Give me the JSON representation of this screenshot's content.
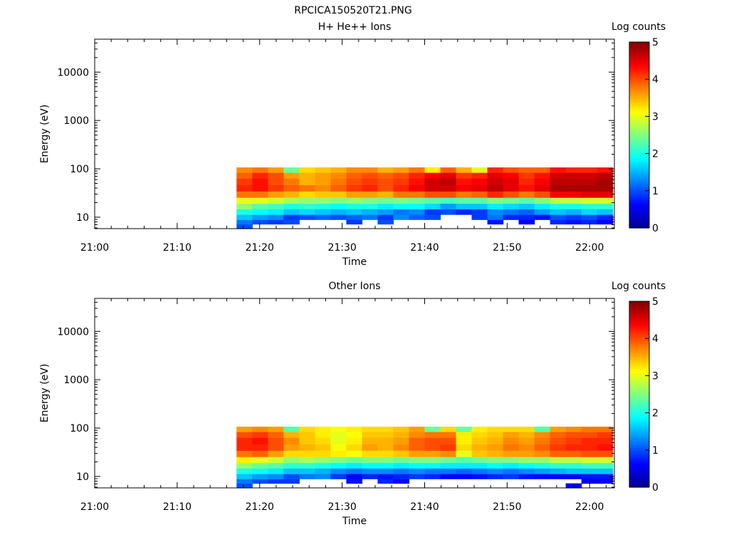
{
  "figure_title": "RPCICA150520T21.PNG",
  "colormap": [
    "#00008f",
    "#0000ff",
    "#0080ff",
    "#00ffff",
    "#80ff80",
    "#ffff00",
    "#ff8000",
    "#ff0000",
    "#800000"
  ],
  "chart_data": [
    {
      "type": "heatmap",
      "title": "H+ He++ Ions",
      "xlabel": "Time",
      "ylabel": "Energy (eV)",
      "x_ticks": [
        "21:00",
        "21:10",
        "21:20",
        "21:30",
        "21:40",
        "21:50",
        "22:00"
      ],
      "x_range": [
        "21:00",
        "22:03"
      ],
      "y_scale": "log",
      "y_ticks": [
        10,
        100,
        1000,
        10000
      ],
      "y_range": [
        5.8,
        48000
      ],
      "energy_bins": [
        6.5,
        8,
        10,
        13,
        17,
        22,
        30,
        40,
        55,
        75,
        95
      ],
      "data_start_time": "21:17.2",
      "data_end_time": "22:02.8",
      "colorbar": {
        "label": "Log counts",
        "ticks": [
          0,
          1,
          2,
          3,
          4,
          5
        ],
        "range": [
          0,
          5
        ]
      },
      "log_counts": [
        [
          1.0,
          -1,
          -1,
          -1,
          -1,
          -1,
          -1,
          -1,
          -1,
          -1,
          -1,
          -1,
          -1,
          -1,
          -1,
          -1,
          -1,
          -1,
          -1,
          -1,
          -1,
          -1,
          -1,
          -1
        ],
        [
          1.2,
          1.0,
          0.9,
          1.0,
          -1,
          -1,
          -1,
          0.9,
          -1,
          1.0,
          -1,
          -1,
          -1,
          -1,
          -1,
          -1,
          0.7,
          -1,
          0.6,
          -1,
          0.8,
          0.7,
          0.8,
          0.6
        ],
        [
          1.6,
          1.4,
          1.3,
          0.9,
          1.0,
          1.1,
          1.0,
          1.1,
          1.2,
          0.9,
          1.3,
          1.1,
          1.0,
          -1,
          -1,
          0.9,
          1.2,
          0.8,
          0.8,
          0.7,
          1.0,
          0.9,
          1.0,
          0.8
        ],
        [
          2.0,
          1.9,
          1.8,
          1.6,
          1.7,
          1.6,
          1.5,
          1.6,
          1.5,
          1.4,
          1.2,
          1.3,
          0.9,
          1.0,
          0.8,
          0.9,
          1.3,
          1.2,
          1.1,
          1.4,
          1.6,
          1.5,
          1.7,
          1.6
        ],
        [
          2.6,
          2.3,
          2.2,
          2.0,
          2.1,
          2.0,
          1.9,
          2.0,
          2.0,
          1.8,
          1.9,
          1.9,
          1.7,
          1.4,
          1.6,
          1.6,
          1.8,
          1.7,
          1.6,
          1.8,
          2.0,
          2.0,
          2.1,
          2.1
        ],
        [
          3.0,
          3.0,
          2.9,
          2.7,
          2.6,
          2.6,
          2.5,
          2.6,
          2.5,
          2.4,
          2.5,
          2.4,
          2.3,
          2.2,
          2.3,
          2.3,
          2.5,
          2.4,
          2.3,
          2.5,
          2.8,
          2.8,
          2.9,
          2.9
        ],
        [
          3.8,
          3.8,
          3.6,
          3.5,
          3.3,
          3.4,
          3.4,
          3.6,
          3.6,
          3.5,
          3.8,
          3.8,
          4.0,
          4.0,
          3.8,
          3.9,
          4.2,
          4.0,
          3.8,
          4.0,
          4.4,
          4.4,
          4.5,
          4.5
        ],
        [
          4.2,
          4.3,
          4.1,
          3.9,
          3.8,
          3.7,
          3.9,
          4.1,
          4.2,
          4.0,
          4.2,
          4.4,
          4.6,
          4.6,
          4.4,
          4.5,
          4.7,
          4.5,
          4.3,
          4.5,
          4.8,
          4.8,
          4.8,
          4.8
        ],
        [
          4.1,
          4.3,
          4.0,
          3.8,
          3.5,
          3.6,
          3.8,
          4.0,
          4.1,
          4.0,
          4.1,
          4.3,
          4.6,
          4.7,
          4.3,
          4.4,
          4.6,
          4.5,
          4.2,
          4.4,
          4.7,
          4.7,
          4.7,
          4.8
        ],
        [
          3.9,
          4.2,
          4.0,
          3.6,
          3.5,
          3.6,
          3.7,
          3.9,
          4.0,
          3.9,
          4.0,
          4.2,
          4.4,
          4.5,
          4.1,
          4.2,
          4.5,
          4.4,
          4.1,
          4.3,
          4.6,
          4.6,
          4.6,
          4.7
        ],
        [
          3.7,
          3.8,
          3.6,
          2.4,
          3.3,
          3.4,
          3.5,
          3.7,
          3.7,
          3.5,
          3.6,
          3.8,
          3.2,
          3.9,
          3.5,
          3.0,
          4.2,
          4.0,
          3.9,
          3.9,
          4.3,
          4.2,
          4.2,
          4.3
        ]
      ]
    },
    {
      "type": "heatmap",
      "title": "Other Ions",
      "xlabel": "Time",
      "ylabel": "Energy (eV)",
      "x_ticks": [
        "21:00",
        "21:10",
        "21:20",
        "21:30",
        "21:40",
        "21:50",
        "22:00"
      ],
      "x_range": [
        "21:00",
        "22:03"
      ],
      "y_scale": "log",
      "y_ticks": [
        10,
        100,
        1000,
        10000
      ],
      "y_range": [
        5.8,
        48000
      ],
      "energy_bins": [
        6.5,
        8,
        10,
        13,
        17,
        22,
        30,
        40,
        55,
        75,
        95
      ],
      "data_start_time": "21:17.2",
      "data_end_time": "22:02.8",
      "colorbar": {
        "label": "Log counts",
        "ticks": [
          0,
          1,
          2,
          3,
          4,
          5
        ],
        "range": [
          0,
          5
        ]
      },
      "log_counts": [
        [
          1.0,
          -1,
          -1,
          -1,
          -1,
          -1,
          -1,
          -1,
          -1,
          -1,
          -1,
          -1,
          -1,
          -1,
          -1,
          -1,
          -1,
          -1,
          -1,
          -1,
          -1,
          0.6,
          -1,
          -1
        ],
        [
          1.2,
          1.0,
          0.9,
          0.9,
          -1,
          -1,
          -1,
          0.7,
          -1,
          0.8,
          0.6,
          -1,
          -1,
          -1,
          -1,
          -1,
          -1,
          -1,
          -1,
          -1,
          -1,
          -1,
          0.5,
          0.6
        ],
        [
          1.6,
          1.4,
          1.3,
          1.0,
          1.2,
          1.3,
          0.9,
          0.6,
          0.8,
          0.7,
          0.8,
          0.9,
          0.8,
          0.6,
          0.6,
          0.7,
          0.8,
          0.9,
          0.7,
          0.6,
          0.6,
          0.6,
          0.7,
          0.7
        ],
        [
          2.0,
          1.9,
          1.8,
          1.6,
          1.6,
          1.5,
          1.3,
          1.2,
          1.3,
          1.3,
          1.2,
          1.3,
          1.2,
          1.2,
          1.1,
          1.2,
          1.3,
          1.2,
          1.3,
          1.4,
          1.5,
          1.6,
          1.6,
          1.6
        ],
        [
          2.6,
          2.4,
          2.3,
          2.1,
          2.1,
          2.0,
          1.9,
          1.8,
          1.9,
          1.9,
          1.8,
          1.9,
          1.9,
          1.8,
          1.8,
          1.8,
          1.9,
          1.8,
          1.9,
          2.0,
          2.1,
          2.1,
          2.2,
          2.2
        ],
        [
          3.2,
          3.0,
          2.9,
          2.6,
          2.7,
          2.6,
          2.5,
          2.4,
          2.5,
          2.5,
          2.4,
          2.5,
          2.5,
          2.4,
          2.3,
          2.4,
          2.5,
          2.5,
          2.6,
          2.6,
          2.8,
          2.8,
          2.9,
          2.9
        ],
        [
          3.8,
          3.9,
          3.6,
          3.3,
          3.3,
          3.3,
          3.2,
          3.1,
          3.3,
          3.3,
          3.4,
          3.6,
          3.6,
          3.7,
          3.0,
          3.4,
          3.5,
          3.6,
          3.6,
          3.7,
          3.9,
          3.9,
          4.0,
          4.0
        ],
        [
          4.2,
          4.2,
          4.0,
          3.6,
          3.5,
          3.4,
          3.1,
          3.3,
          3.6,
          3.5,
          3.7,
          3.9,
          4.0,
          4.1,
          3.3,
          3.5,
          3.6,
          3.8,
          3.7,
          3.9,
          4.1,
          4.2,
          4.2,
          4.3
        ],
        [
          4.2,
          4.3,
          4.0,
          3.7,
          3.4,
          3.3,
          3.0,
          3.2,
          3.5,
          3.5,
          3.6,
          3.9,
          4.0,
          4.0,
          3.2,
          3.4,
          3.5,
          3.7,
          3.6,
          3.8,
          4.0,
          4.1,
          4.2,
          4.2
        ],
        [
          4.0,
          4.1,
          3.9,
          3.5,
          3.4,
          3.2,
          3.0,
          3.1,
          3.4,
          3.4,
          3.5,
          3.7,
          3.8,
          3.8,
          3.2,
          3.3,
          3.4,
          3.6,
          3.5,
          3.7,
          3.9,
          4.0,
          4.0,
          4.1
        ],
        [
          3.6,
          3.7,
          3.6,
          2.3,
          3.3,
          3.2,
          3.1,
          3.2,
          3.3,
          3.3,
          3.4,
          3.6,
          2.4,
          3.3,
          2.4,
          3.2,
          3.3,
          3.3,
          3.3,
          2.3,
          3.6,
          3.7,
          3.8,
          3.8
        ]
      ]
    }
  ]
}
